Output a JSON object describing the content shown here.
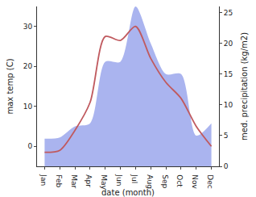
{
  "chart_data": {
    "type": "line",
    "x_label": "date (month)",
    "y_label": "max temp (C)",
    "y2_label": "med. precipitation (kg/m2)",
    "categories": [
      "Jan",
      "Feb",
      "Mar",
      "Apr",
      "May",
      "Jun",
      "Jul",
      "Aug",
      "Sep",
      "Oct",
      "Nov",
      "Dec"
    ],
    "series": [
      {
        "name": "med. precipitation",
        "type": "area",
        "axis": "y2",
        "color": "#aab4ef",
        "values": [
          4.5,
          4.7,
          6.5,
          7,
          17,
          17,
          26,
          20,
          15,
          15,
          5,
          7
        ]
      },
      {
        "name": "max temp",
        "type": "line",
        "color": "#c05a5f",
        "values": [
          -1.5,
          -1,
          4,
          11,
          27.5,
          26.5,
          30,
          22,
          16,
          12,
          5,
          0
        ]
      }
    ],
    "ylim": [
      -5,
      35
    ],
    "yticks": [
      0,
      10,
      20,
      30
    ],
    "y2lim": [
      0,
      26
    ],
    "y2ticks": [
      0,
      5,
      10,
      15,
      20,
      25
    ],
    "grid": false
  }
}
